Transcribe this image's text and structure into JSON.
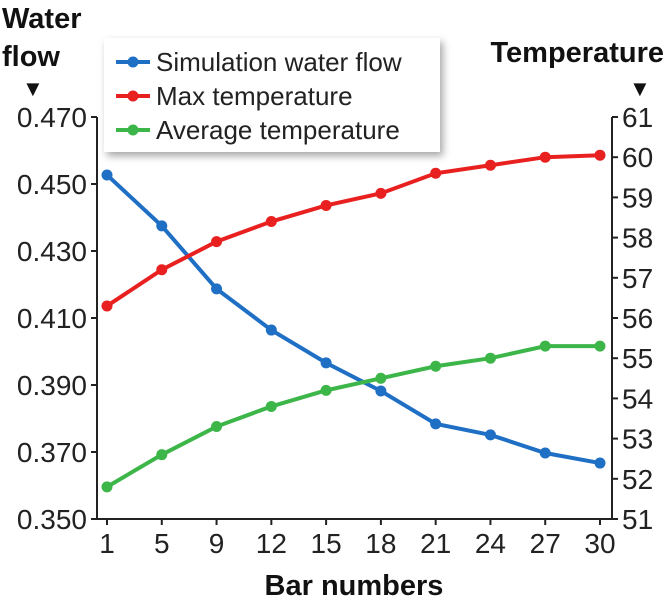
{
  "chart_data": {
    "type": "line",
    "xlabel": "Bar numbers",
    "ylabel_left": "Water flow",
    "ylabel_right": "Temperature",
    "ylabel_marker": "▼",
    "categories": [
      "1",
      "5",
      "9",
      "12",
      "15",
      "18",
      "21",
      "24",
      "27",
      "30"
    ],
    "y_left": {
      "lim": [
        0.35,
        0.47
      ],
      "ticks": [
        "0.350",
        "0.370",
        "0.390",
        "0.410",
        "0.430",
        "0.450",
        "0.470"
      ]
    },
    "y_right": {
      "lim": [
        51,
        61
      ],
      "ticks": [
        "51",
        "52",
        "53",
        "54",
        "55",
        "56",
        "57",
        "58",
        "59",
        "60",
        "61"
      ]
    },
    "grid": false,
    "legend_position": "top-left",
    "series": [
      {
        "name": "Simulation water flow",
        "axis": "left",
        "color": "#1f6fc5",
        "values": [
          0.4527,
          0.4375,
          0.4187,
          0.4064,
          0.3966,
          0.3882,
          0.3784,
          0.3751,
          0.3697,
          0.3667
        ]
      },
      {
        "name": "Max temperature",
        "axis": "right",
        "color": "#e8201f",
        "values": [
          56.3,
          57.2,
          57.9,
          58.4,
          58.8,
          59.1,
          59.6,
          59.8,
          60.0,
          60.05
        ]
      },
      {
        "name": "Average temperature",
        "axis": "right",
        "color": "#3db649",
        "values": [
          51.8,
          52.6,
          53.3,
          53.8,
          54.2,
          54.5,
          54.8,
          55.0,
          55.3,
          55.3
        ]
      }
    ]
  }
}
